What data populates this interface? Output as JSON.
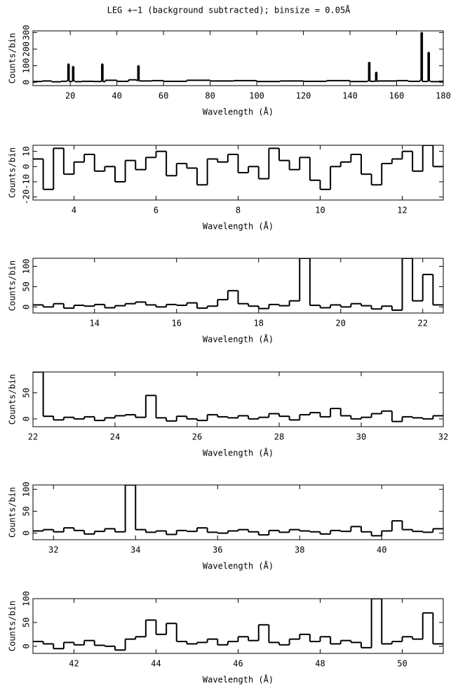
{
  "title": "LEG +−1 (background subtracted); binsize = 0.05Å",
  "chart_data": [
    {
      "type": "step",
      "xlabel": "Wavelength (Å)",
      "ylabel": "Counts/bin",
      "color": "#000000",
      "xlim": [
        4,
        180
      ],
      "ylim": [
        -20,
        310
      ],
      "xticks": [
        20,
        40,
        60,
        80,
        100,
        120,
        140,
        160,
        180
      ],
      "yticks": [
        0,
        100,
        200,
        300
      ],
      "x": [
        4,
        8,
        12,
        16,
        18.5,
        19,
        19.5,
        21,
        21.5,
        22,
        25,
        30,
        33.5,
        34,
        35,
        40,
        45,
        48.5,
        49,
        49.5,
        55,
        60,
        70,
        80,
        90,
        100,
        110,
        120,
        130,
        140,
        147.5,
        148,
        148.5,
        151,
        151.5,
        152,
        160,
        165,
        170,
        170.5,
        171,
        173.5,
        174,
        174.5,
        178
      ],
      "values": [
        5,
        8,
        3,
        6,
        10,
        110,
        5,
        95,
        8,
        4,
        6,
        5,
        110,
        4,
        12,
        6,
        15,
        10,
        100,
        8,
        10,
        6,
        12,
        8,
        10,
        5,
        8,
        6,
        10,
        5,
        8,
        120,
        6,
        60,
        5,
        8,
        10,
        6,
        12,
        300,
        5,
        180,
        8,
        4,
        6
      ]
    },
    {
      "type": "step",
      "xlabel": "Wavelength (Å)",
      "ylabel": "Counts/bin",
      "color": "#000000",
      "xlim": [
        3,
        13
      ],
      "ylim": [
        -22,
        14
      ],
      "xticks": [
        4,
        6,
        8,
        10,
        12
      ],
      "yticks": [
        -20,
        -10,
        0,
        10
      ],
      "x": [
        3,
        3.25,
        3.5,
        3.75,
        4,
        4.25,
        4.5,
        4.75,
        5,
        5.25,
        5.5,
        5.75,
        6,
        6.25,
        6.5,
        6.75,
        7,
        7.25,
        7.5,
        7.75,
        8,
        8.25,
        8.5,
        8.75,
        9,
        9.25,
        9.5,
        9.75,
        10,
        10.25,
        10.5,
        10.75,
        11,
        11.25,
        11.5,
        11.75,
        12,
        12.25,
        12.5,
        12.75
      ],
      "values": [
        5,
        -15,
        12,
        -5,
        3,
        8,
        -3,
        0,
        -10,
        4,
        -2,
        6,
        10,
        -6,
        2,
        -1,
        -12,
        5,
        3,
        8,
        -4,
        0,
        -8,
        12,
        4,
        -2,
        6,
        -9,
        -15,
        0,
        3,
        8,
        -5,
        -12,
        2,
        5,
        10,
        -3,
        14,
        0
      ]
    },
    {
      "type": "step",
      "xlabel": "Wavelength (Å)",
      "ylabel": "Counts/bin",
      "color": "#000000",
      "xlim": [
        12.5,
        22.5
      ],
      "ylim": [
        -15,
        120
      ],
      "xticks": [
        14,
        16,
        18,
        20,
        22
      ],
      "yticks": [
        0,
        50,
        100
      ],
      "x": [
        12.5,
        12.75,
        13,
        13.25,
        13.5,
        13.75,
        14,
        14.25,
        14.5,
        14.75,
        15,
        15.25,
        15.5,
        15.75,
        16,
        16.25,
        16.5,
        16.75,
        17,
        17.25,
        17.5,
        17.75,
        18,
        18.25,
        18.5,
        18.75,
        19,
        19.25,
        19.5,
        19.75,
        20,
        20.25,
        20.5,
        20.75,
        21,
        21.25,
        21.5,
        21.75,
        22,
        22.25
      ],
      "values": [
        5,
        0,
        8,
        -3,
        4,
        2,
        6,
        -2,
        3,
        8,
        12,
        5,
        0,
        6,
        4,
        10,
        -3,
        2,
        18,
        40,
        8,
        2,
        -4,
        6,
        3,
        15,
        120,
        4,
        -2,
        5,
        0,
        8,
        3,
        -5,
        2,
        -8,
        120,
        15,
        80,
        5
      ]
    },
    {
      "type": "step",
      "xlabel": "Wavelength (Å)",
      "ylabel": "Counts/bin",
      "color": "#000000",
      "xlim": [
        22,
        32
      ],
      "ylim": [
        -15,
        90
      ],
      "xticks": [
        22,
        24,
        26,
        28,
        30,
        32
      ],
      "yticks": [
        0,
        50
      ],
      "x": [
        22,
        22.25,
        22.5,
        22.75,
        23,
        23.25,
        23.5,
        23.75,
        24,
        24.25,
        24.5,
        24.75,
        25,
        25.25,
        25.5,
        25.75,
        26,
        26.25,
        26.5,
        26.75,
        27,
        27.25,
        27.5,
        27.75,
        28,
        28.25,
        28.5,
        28.75,
        29,
        29.25,
        29.5,
        29.75,
        30,
        30.25,
        30.5,
        30.75,
        31,
        31.25,
        31.5,
        31.75
      ],
      "values": [
        90,
        5,
        -2,
        3,
        0,
        4,
        -3,
        2,
        6,
        8,
        3,
        45,
        2,
        -4,
        5,
        0,
        -3,
        8,
        4,
        2,
        6,
        0,
        3,
        10,
        5,
        -2,
        8,
        12,
        4,
        20,
        6,
        0,
        3,
        10,
        15,
        -5,
        4,
        2,
        0,
        6
      ]
    },
    {
      "type": "step",
      "xlabel": "Wavelength (Å)",
      "ylabel": "Counts/bin",
      "color": "#000000",
      "xlim": [
        31.5,
        41.5
      ],
      "ylim": [
        -15,
        110
      ],
      "xticks": [
        32,
        34,
        36,
        38,
        40
      ],
      "yticks": [
        0,
        50,
        100
      ],
      "x": [
        31.5,
        31.75,
        32,
        32.25,
        32.5,
        32.75,
        33,
        33.25,
        33.5,
        33.75,
        34,
        34.25,
        34.5,
        34.75,
        35,
        35.25,
        35.5,
        35.75,
        36,
        36.25,
        36.5,
        36.75,
        37,
        37.25,
        37.5,
        37.75,
        38,
        38.25,
        38.5,
        38.75,
        39,
        39.25,
        39.5,
        39.75,
        40,
        40.25,
        40.5,
        40.75,
        41,
        41.25
      ],
      "values": [
        5,
        8,
        3,
        12,
        6,
        -2,
        4,
        10,
        3,
        110,
        8,
        2,
        5,
        -3,
        6,
        4,
        12,
        2,
        0,
        5,
        8,
        3,
        -4,
        6,
        2,
        8,
        5,
        3,
        -2,
        6,
        4,
        15,
        3,
        -6,
        5,
        28,
        8,
        4,
        2,
        10
      ]
    },
    {
      "type": "step",
      "xlabel": "Wavelength (Å)",
      "ylabel": "Counts/bin",
      "color": "#000000",
      "xlim": [
        41,
        51
      ],
      "ylim": [
        -15,
        100
      ],
      "xticks": [
        42,
        44,
        46,
        48,
        50
      ],
      "yticks": [
        0,
        50,
        100
      ],
      "x": [
        41,
        41.25,
        41.5,
        41.75,
        42,
        42.25,
        42.5,
        42.75,
        43,
        43.25,
        43.5,
        43.75,
        44,
        44.25,
        44.5,
        44.75,
        45,
        45.25,
        45.5,
        45.75,
        46,
        46.25,
        46.5,
        46.75,
        47,
        47.25,
        47.5,
        47.75,
        48,
        48.25,
        48.5,
        48.75,
        49,
        49.25,
        49.5,
        49.75,
        50,
        50.25,
        50.5,
        50.75
      ],
      "values": [
        10,
        5,
        -5,
        8,
        3,
        12,
        2,
        0,
        -8,
        15,
        20,
        55,
        25,
        48,
        10,
        5,
        8,
        15,
        3,
        10,
        20,
        12,
        45,
        8,
        3,
        15,
        25,
        10,
        20,
        5,
        12,
        8,
        -3,
        100,
        5,
        10,
        20,
        15,
        70,
        5
      ]
    }
  ]
}
